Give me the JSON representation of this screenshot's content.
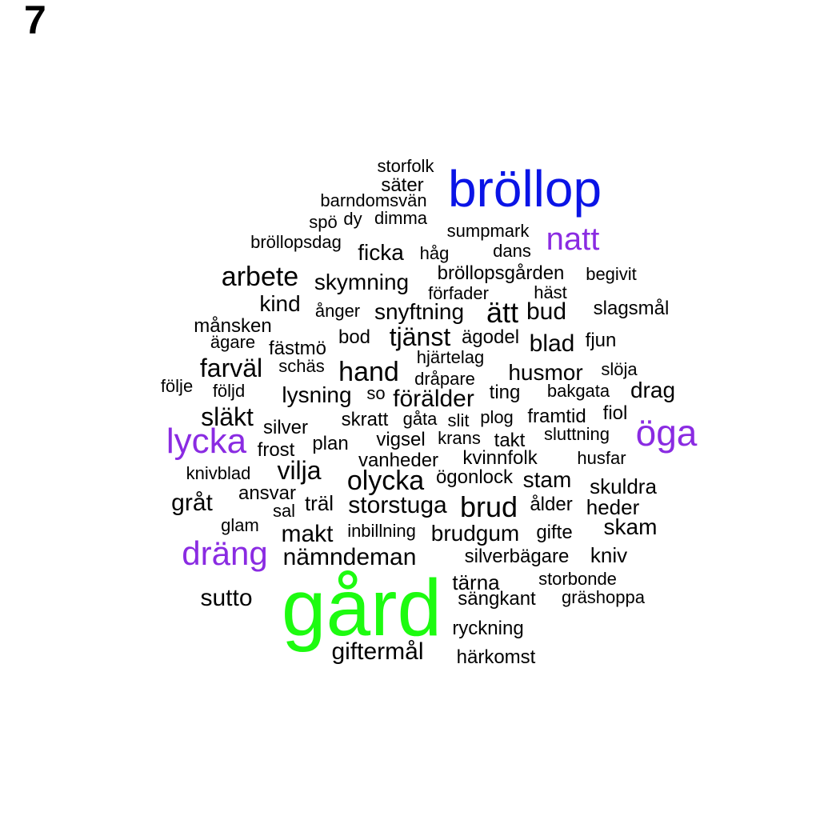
{
  "panel_label": "7",
  "colors": {
    "black": "#000000",
    "blue": "#0a14e6",
    "purple": "#8a2be2",
    "green": "#1dfb10"
  },
  "words": [
    {
      "text": "gård",
      "color": "green"
    },
    {
      "text": "bröllop",
      "color": "blue"
    },
    {
      "text": "natt",
      "color": "purple"
    },
    {
      "text": "öga",
      "color": "purple"
    },
    {
      "text": "lycka",
      "color": "purple"
    },
    {
      "text": "dräng",
      "color": "purple"
    },
    {
      "text": "storfolk",
      "color": "black"
    },
    {
      "text": "säter",
      "color": "black"
    },
    {
      "text": "barndomsvän",
      "color": "black"
    },
    {
      "text": "spö",
      "color": "black"
    },
    {
      "text": "dy",
      "color": "black"
    },
    {
      "text": "dimma",
      "color": "black"
    },
    {
      "text": "sumpmark",
      "color": "black"
    },
    {
      "text": "bröllopsdag",
      "color": "black"
    },
    {
      "text": "ficka",
      "color": "black"
    },
    {
      "text": "håg",
      "color": "black"
    },
    {
      "text": "dans",
      "color": "black"
    },
    {
      "text": "bröllopsgården",
      "color": "black"
    },
    {
      "text": "begivit",
      "color": "black"
    },
    {
      "text": "arbete",
      "color": "black"
    },
    {
      "text": "skymning",
      "color": "black"
    },
    {
      "text": "förfader",
      "color": "black"
    },
    {
      "text": "häst",
      "color": "black"
    },
    {
      "text": "kind",
      "color": "black"
    },
    {
      "text": "ånger",
      "color": "black"
    },
    {
      "text": "snyftning",
      "color": "black"
    },
    {
      "text": "ätt",
      "color": "black"
    },
    {
      "text": "bud",
      "color": "black"
    },
    {
      "text": "slagsmål",
      "color": "black"
    },
    {
      "text": "månsken",
      "color": "black"
    },
    {
      "text": "ägare",
      "color": "black"
    },
    {
      "text": "fästmö",
      "color": "black"
    },
    {
      "text": "bod",
      "color": "black"
    },
    {
      "text": "tjänst",
      "color": "black"
    },
    {
      "text": "ägodel",
      "color": "black"
    },
    {
      "text": "blad",
      "color": "black"
    },
    {
      "text": "fjun",
      "color": "black"
    },
    {
      "text": "hjärtelag",
      "color": "black"
    },
    {
      "text": "farväl",
      "color": "black"
    },
    {
      "text": "schäs",
      "color": "black"
    },
    {
      "text": "hand",
      "color": "black"
    },
    {
      "text": "dråpare",
      "color": "black"
    },
    {
      "text": "husmor",
      "color": "black"
    },
    {
      "text": "slöja",
      "color": "black"
    },
    {
      "text": "följe",
      "color": "black"
    },
    {
      "text": "följd",
      "color": "black"
    },
    {
      "text": "lysning",
      "color": "black"
    },
    {
      "text": "so",
      "color": "black"
    },
    {
      "text": "förälder",
      "color": "black"
    },
    {
      "text": "ting",
      "color": "black"
    },
    {
      "text": "bakgata",
      "color": "black"
    },
    {
      "text": "drag",
      "color": "black"
    },
    {
      "text": "släkt",
      "color": "black"
    },
    {
      "text": "skratt",
      "color": "black"
    },
    {
      "text": "gåta",
      "color": "black"
    },
    {
      "text": "slit",
      "color": "black"
    },
    {
      "text": "plog",
      "color": "black"
    },
    {
      "text": "framtid",
      "color": "black"
    },
    {
      "text": "fiol",
      "color": "black"
    },
    {
      "text": "silver",
      "color": "black"
    },
    {
      "text": "vigsel",
      "color": "black"
    },
    {
      "text": "krans",
      "color": "black"
    },
    {
      "text": "takt",
      "color": "black"
    },
    {
      "text": "sluttning",
      "color": "black"
    },
    {
      "text": "frost",
      "color": "black"
    },
    {
      "text": "plan",
      "color": "black"
    },
    {
      "text": "vanheder",
      "color": "black"
    },
    {
      "text": "kvinnfolk",
      "color": "black"
    },
    {
      "text": "husfar",
      "color": "black"
    },
    {
      "text": "knivblad",
      "color": "black"
    },
    {
      "text": "vilja",
      "color": "black"
    },
    {
      "text": "olycka",
      "color": "black"
    },
    {
      "text": "ögonlock",
      "color": "black"
    },
    {
      "text": "stam",
      "color": "black"
    },
    {
      "text": "skuldra",
      "color": "black"
    },
    {
      "text": "ansvar",
      "color": "black"
    },
    {
      "text": "gråt",
      "color": "black"
    },
    {
      "text": "träl",
      "color": "black"
    },
    {
      "text": "storstuga",
      "color": "black"
    },
    {
      "text": "brud",
      "color": "black"
    },
    {
      "text": "ålder",
      "color": "black"
    },
    {
      "text": "heder",
      "color": "black"
    },
    {
      "text": "sal",
      "color": "black"
    },
    {
      "text": "glam",
      "color": "black"
    },
    {
      "text": "makt",
      "color": "black"
    },
    {
      "text": "inbillning",
      "color": "black"
    },
    {
      "text": "brudgum",
      "color": "black"
    },
    {
      "text": "gifte",
      "color": "black"
    },
    {
      "text": "skam",
      "color": "black"
    },
    {
      "text": "nämndeman",
      "color": "black"
    },
    {
      "text": "silverbägare",
      "color": "black"
    },
    {
      "text": "kniv",
      "color": "black"
    },
    {
      "text": "tärna",
      "color": "black"
    },
    {
      "text": "storbonde",
      "color": "black"
    },
    {
      "text": "sutto",
      "color": "black"
    },
    {
      "text": "sängkant",
      "color": "black"
    },
    {
      "text": "gräshoppa",
      "color": "black"
    },
    {
      "text": "ryckning",
      "color": "black"
    },
    {
      "text": "giftermål",
      "color": "black"
    },
    {
      "text": "härkomst",
      "color": "black"
    }
  ]
}
